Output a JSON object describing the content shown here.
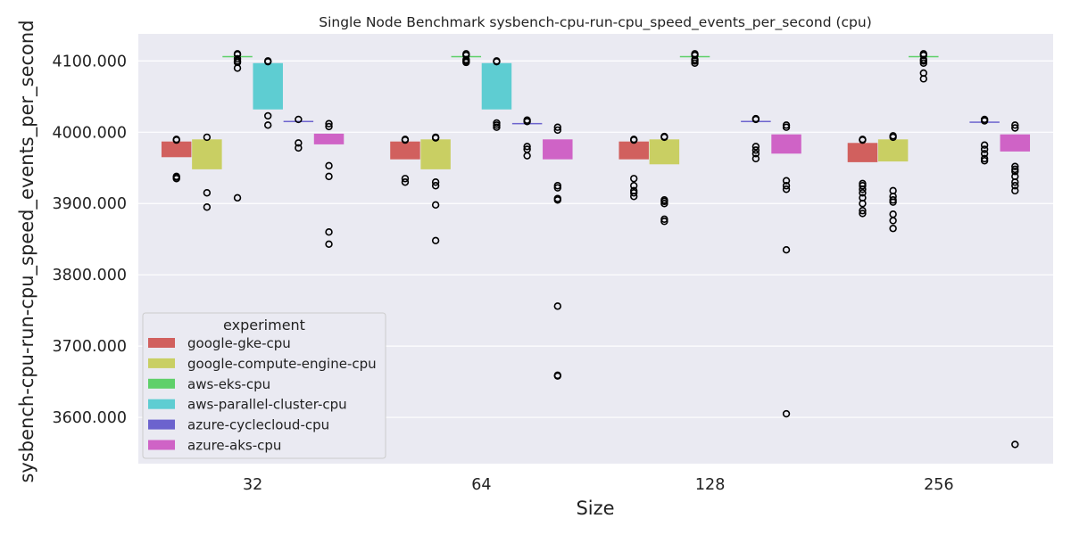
{
  "chart_data": {
    "type": "boxplot",
    "title": "Single Node Benchmark sysbench-cpu-run-cpu_speed_events_per_second (cpu)",
    "xlabel": "Size",
    "ylabel": "sysbench-cpu-run-cpu_speed_events_per_second",
    "categories": [
      "32",
      "64",
      "128",
      "256"
    ],
    "ylim": [
      3535,
      4138
    ],
    "yticks": [
      3600,
      3700,
      3800,
      3900,
      4000,
      4100
    ],
    "ytick_labels": [
      "3600.000",
      "3700.000",
      "3800.000",
      "3900.000",
      "4000.000",
      "4100.000"
    ],
    "grid": true,
    "legend_title": "experiment",
    "legend_position": "lower-left",
    "series": [
      {
        "name": "google-gke-cpu",
        "color": "#d1605e",
        "boxes": [
          {
            "category": "32",
            "q1": 3965,
            "q3": 3987,
            "outliers": [
              3989,
              3990,
              3935,
              3937,
              3938
            ]
          },
          {
            "category": "64",
            "q1": 3962,
            "q3": 3987,
            "outliers": [
              3989,
              3990,
              3930,
              3935
            ]
          },
          {
            "category": "128",
            "q1": 3962,
            "q3": 3987,
            "outliers": [
              3989,
              3990,
              3935,
              3925,
              3918,
              3915,
              3910
            ]
          },
          {
            "category": "256",
            "q1": 3958,
            "q3": 3985,
            "outliers": [
              3989,
              3990,
              3928,
              3925,
              3920,
              3915,
              3908,
              3900,
              3890,
              3886
            ]
          }
        ]
      },
      {
        "name": "google-compute-engine-cpu",
        "color": "#c9cf63",
        "boxes": [
          {
            "category": "32",
            "q1": 3948,
            "q3": 3990,
            "outliers": [
              3993,
              3915,
              3895
            ]
          },
          {
            "category": "64",
            "q1": 3948,
            "q3": 3990,
            "outliers": [
              3992,
              3993,
              3930,
              3925,
              3898,
              3848
            ]
          },
          {
            "category": "128",
            "q1": 3955,
            "q3": 3990,
            "outliers": [
              3993,
              3994,
              3905,
              3903,
              3900,
              3878,
              3875
            ]
          },
          {
            "category": "256",
            "q1": 3959,
            "q3": 3990,
            "outliers": [
              3993,
              3995,
              3918,
              3910,
              3905,
              3902,
              3885,
              3876,
              3865
            ]
          }
        ]
      },
      {
        "name": "aws-eks-cpu",
        "color": "#5fd06a",
        "boxes": [
          {
            "category": "32",
            "q1": 4106,
            "q3": 4107,
            "outliers": [
              4109,
              4110,
              4103,
              4100,
              4098,
              4090,
              3908
            ]
          },
          {
            "category": "64",
            "q1": 4106,
            "q3": 4107,
            "outliers": [
              4110,
              4108,
              4102,
              4100,
              4098
            ]
          },
          {
            "category": "128",
            "q1": 4106,
            "q3": 4107,
            "outliers": [
              4110,
              4108,
              4102,
              4100,
              4097
            ]
          },
          {
            "category": "256",
            "q1": 4106,
            "q3": 4107,
            "outliers": [
              4110,
              4108,
              4102,
              4100,
              4097,
              4083,
              4075
            ]
          }
        ]
      },
      {
        "name": "aws-parallel-cluster-cpu",
        "color": "#5ecdd2",
        "boxes": [
          {
            "category": "32",
            "q1": 4032,
            "q3": 4097,
            "outliers": [
              4099,
              4100,
              4023,
              4010
            ]
          },
          {
            "category": "64",
            "q1": 4032,
            "q3": 4097,
            "outliers": [
              4099,
              4100,
              4013,
              4010,
              4007
            ]
          }
        ]
      },
      {
        "name": "azure-cyclecloud-cpu",
        "color": "#6c63ce",
        "boxes": [
          {
            "category": "32",
            "q1": 4015,
            "q3": 4016,
            "outliers": [
              4018,
              3985,
              3978
            ]
          },
          {
            "category": "64",
            "q1": 4012,
            "q3": 4013,
            "outliers": [
              4017,
              4015,
              3980,
              3976,
              3967
            ]
          },
          {
            "category": "128",
            "q1": 4015,
            "q3": 4016,
            "outliers": [
              4018,
              4019,
              3980,
              3975,
              3970,
              3963
            ]
          },
          {
            "category": "256",
            "q1": 4014,
            "q3": 4015,
            "outliers": [
              4018,
              4016,
              3982,
              3976,
              3970,
              3963,
              3960
            ]
          }
        ]
      },
      {
        "name": "azure-aks-cpu",
        "color": "#cf63c6",
        "boxes": [
          {
            "category": "32",
            "q1": 3983,
            "q3": 3998,
            "outliers": [
              4012,
              4008,
              3953,
              3938,
              3860,
              3843
            ]
          },
          {
            "category": "64",
            "q1": 3962,
            "q3": 3990,
            "outliers": [
              4007,
              4003,
              3925,
              3922,
              3907,
              3905,
              3756,
              3659,
              3658
            ]
          },
          {
            "category": "128",
            "q1": 3970,
            "q3": 3997,
            "outliers": [
              4010,
              4007,
              3932,
              3925,
              3920,
              3835,
              3605
            ]
          },
          {
            "category": "256",
            "q1": 3973,
            "q3": 3997,
            "outliers": [
              4010,
              4006,
              3952,
              3948,
              3945,
              3938,
              3930,
              3925,
              3918,
              3562
            ]
          }
        ]
      }
    ]
  }
}
